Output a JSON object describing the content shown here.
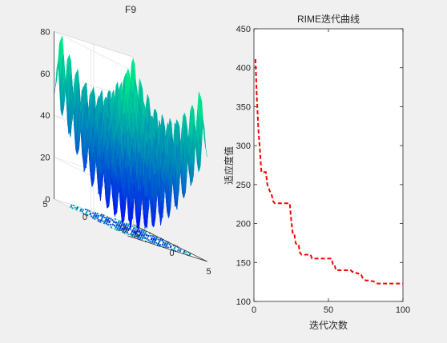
{
  "chart_data": [
    {
      "type": "surface",
      "title": "F9",
      "xlabel": "",
      "ylabel": "",
      "zlabel": "",
      "xlim": [
        -5,
        5
      ],
      "ylim": [
        -5,
        5
      ],
      "zlim": [
        0,
        80
      ],
      "x_ticks": [
        "-5",
        "0",
        "5"
      ],
      "y_ticks": [
        "-5",
        "0",
        "5"
      ],
      "z_ticks": [
        "0",
        "20",
        "40",
        "60",
        "80"
      ],
      "function": "z = sum(x_i^2 - 10cos(2*pi*x_i) + 10), Rastrigin, 2 dims",
      "colormap": "winter",
      "contour_at_base": true,
      "grid": true
    },
    {
      "type": "line",
      "title": "RIME迭代曲线",
      "xlabel": "迭代次数",
      "ylabel": "适应度值",
      "xlim": [
        0,
        100
      ],
      "ylim": [
        100,
        450
      ],
      "x_ticks": [
        "0",
        "50",
        "100"
      ],
      "y_ticks": [
        "100",
        "150",
        "200",
        "250",
        "300",
        "350",
        "400",
        "450"
      ],
      "series": [
        {
          "style": "dashed",
          "color": "#ff0000",
          "x": [
            1,
            2,
            3,
            4,
            5,
            6,
            7,
            8,
            9,
            10,
            11,
            12,
            13,
            14,
            15,
            16,
            17,
            18,
            19,
            20,
            21,
            22,
            23,
            24,
            25,
            26,
            27,
            28,
            29,
            30,
            31,
            32,
            33,
            34,
            35,
            36,
            37,
            38,
            39,
            40,
            41,
            42,
            43,
            44,
            45,
            46,
            47,
            48,
            49,
            50,
            51,
            52,
            53,
            54,
            55,
            56,
            57,
            58,
            59,
            60,
            61,
            62,
            63,
            64,
            65,
            66,
            67,
            68,
            69,
            70,
            71,
            72,
            73,
            74,
            75,
            76,
            77,
            78,
            79,
            80,
            81,
            82,
            83,
            84,
            85,
            86,
            87,
            88,
            89,
            90,
            91,
            92,
            93,
            94,
            95,
            96,
            97,
            98,
            99,
            100
          ],
          "y": [
            411,
            360,
            320,
            295,
            266,
            266,
            266,
            266,
            250,
            245,
            240,
            236,
            228,
            226,
            226,
            226,
            226,
            226,
            226,
            226,
            226,
            226,
            226,
            226,
            205,
            188,
            188,
            175,
            172,
            172,
            162,
            160,
            160,
            160,
            160,
            160,
            160,
            160,
            155,
            155,
            155,
            155,
            155,
            155,
            155,
            155,
            155,
            155,
            155,
            155,
            155,
            155,
            148,
            148,
            140,
            140,
            140,
            140,
            140,
            140,
            140,
            140,
            140,
            140,
            140,
            138,
            138,
            138,
            136,
            136,
            134,
            134,
            130,
            128,
            127,
            127,
            127,
            127,
            126,
            126,
            125,
            124,
            123,
            123,
            123,
            123,
            123,
            123,
            123,
            123,
            123,
            123,
            123,
            123,
            123,
            123,
            123,
            123,
            123,
            123
          ]
        }
      ],
      "grid": false
    }
  ]
}
